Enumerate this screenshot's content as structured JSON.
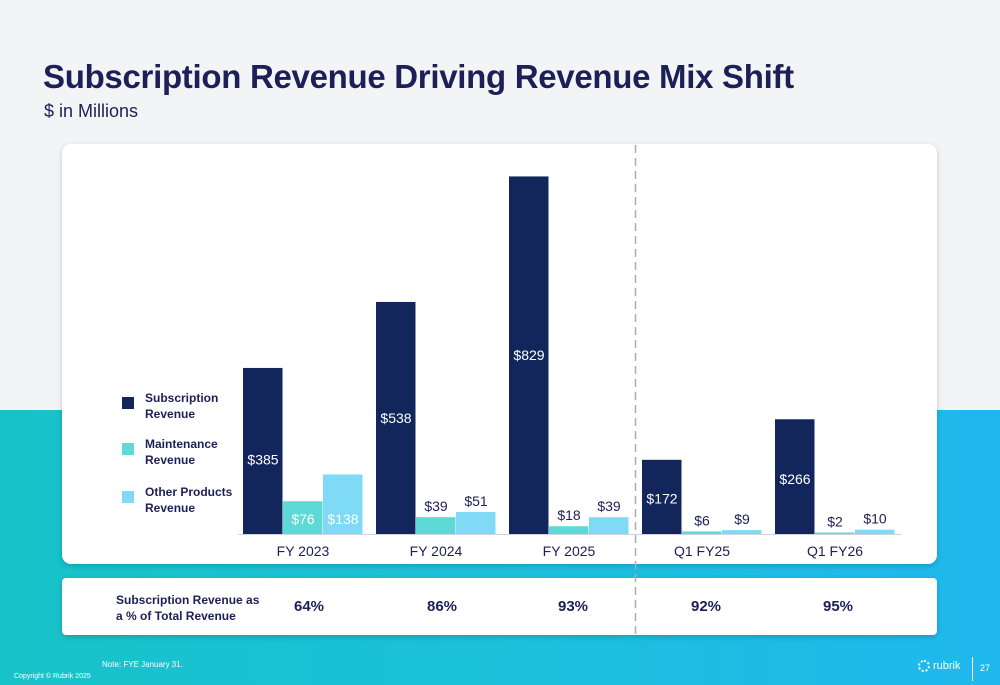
{
  "slide": {
    "title": "Subscription Revenue Driving Revenue Mix Shift",
    "subtitle": "$ in Millions",
    "footnote": "Note: FYE January 31.",
    "copyright": "Copyright © Rubrik 2025",
    "logo_text": "rubrik",
    "page_number": "27"
  },
  "colors": {
    "subscription": "#13265c",
    "maintenance": "#5ddad5",
    "other": "#7fdbf5",
    "text_dark": "#1d1f57"
  },
  "legend": [
    {
      "label": "Subscription Revenue"
    },
    {
      "label": "Maintenance Revenue"
    },
    {
      "label": "Other Products Revenue"
    }
  ],
  "chart_data": {
    "type": "bar",
    "categories": [
      "FY 2023",
      "FY 2024",
      "FY 2025",
      "Q1 FY25",
      "Q1 FY26"
    ],
    "series": [
      {
        "name": "Subscription Revenue",
        "values": [
          385,
          538,
          829,
          172,
          266
        ],
        "labels": [
          "$385",
          "$538",
          "$829",
          "$172",
          "$266"
        ]
      },
      {
        "name": "Maintenance Revenue",
        "values": [
          76,
          39,
          18,
          6,
          2
        ],
        "labels": [
          "$76",
          "$39",
          "$18",
          "$6",
          "$2"
        ]
      },
      {
        "name": "Other Products Revenue",
        "values": [
          138,
          51,
          39,
          9,
          10
        ],
        "labels": [
          "$138",
          "$51",
          "$39",
          "$9",
          "$10"
        ]
      }
    ],
    "ylim": [
      0,
      830
    ],
    "grid": false,
    "legend_position": "left"
  },
  "percent_row": {
    "label": "Subscription Revenue as a % of Total Revenue",
    "values": [
      "64%",
      "86%",
      "93%",
      "92%",
      "95%"
    ]
  }
}
